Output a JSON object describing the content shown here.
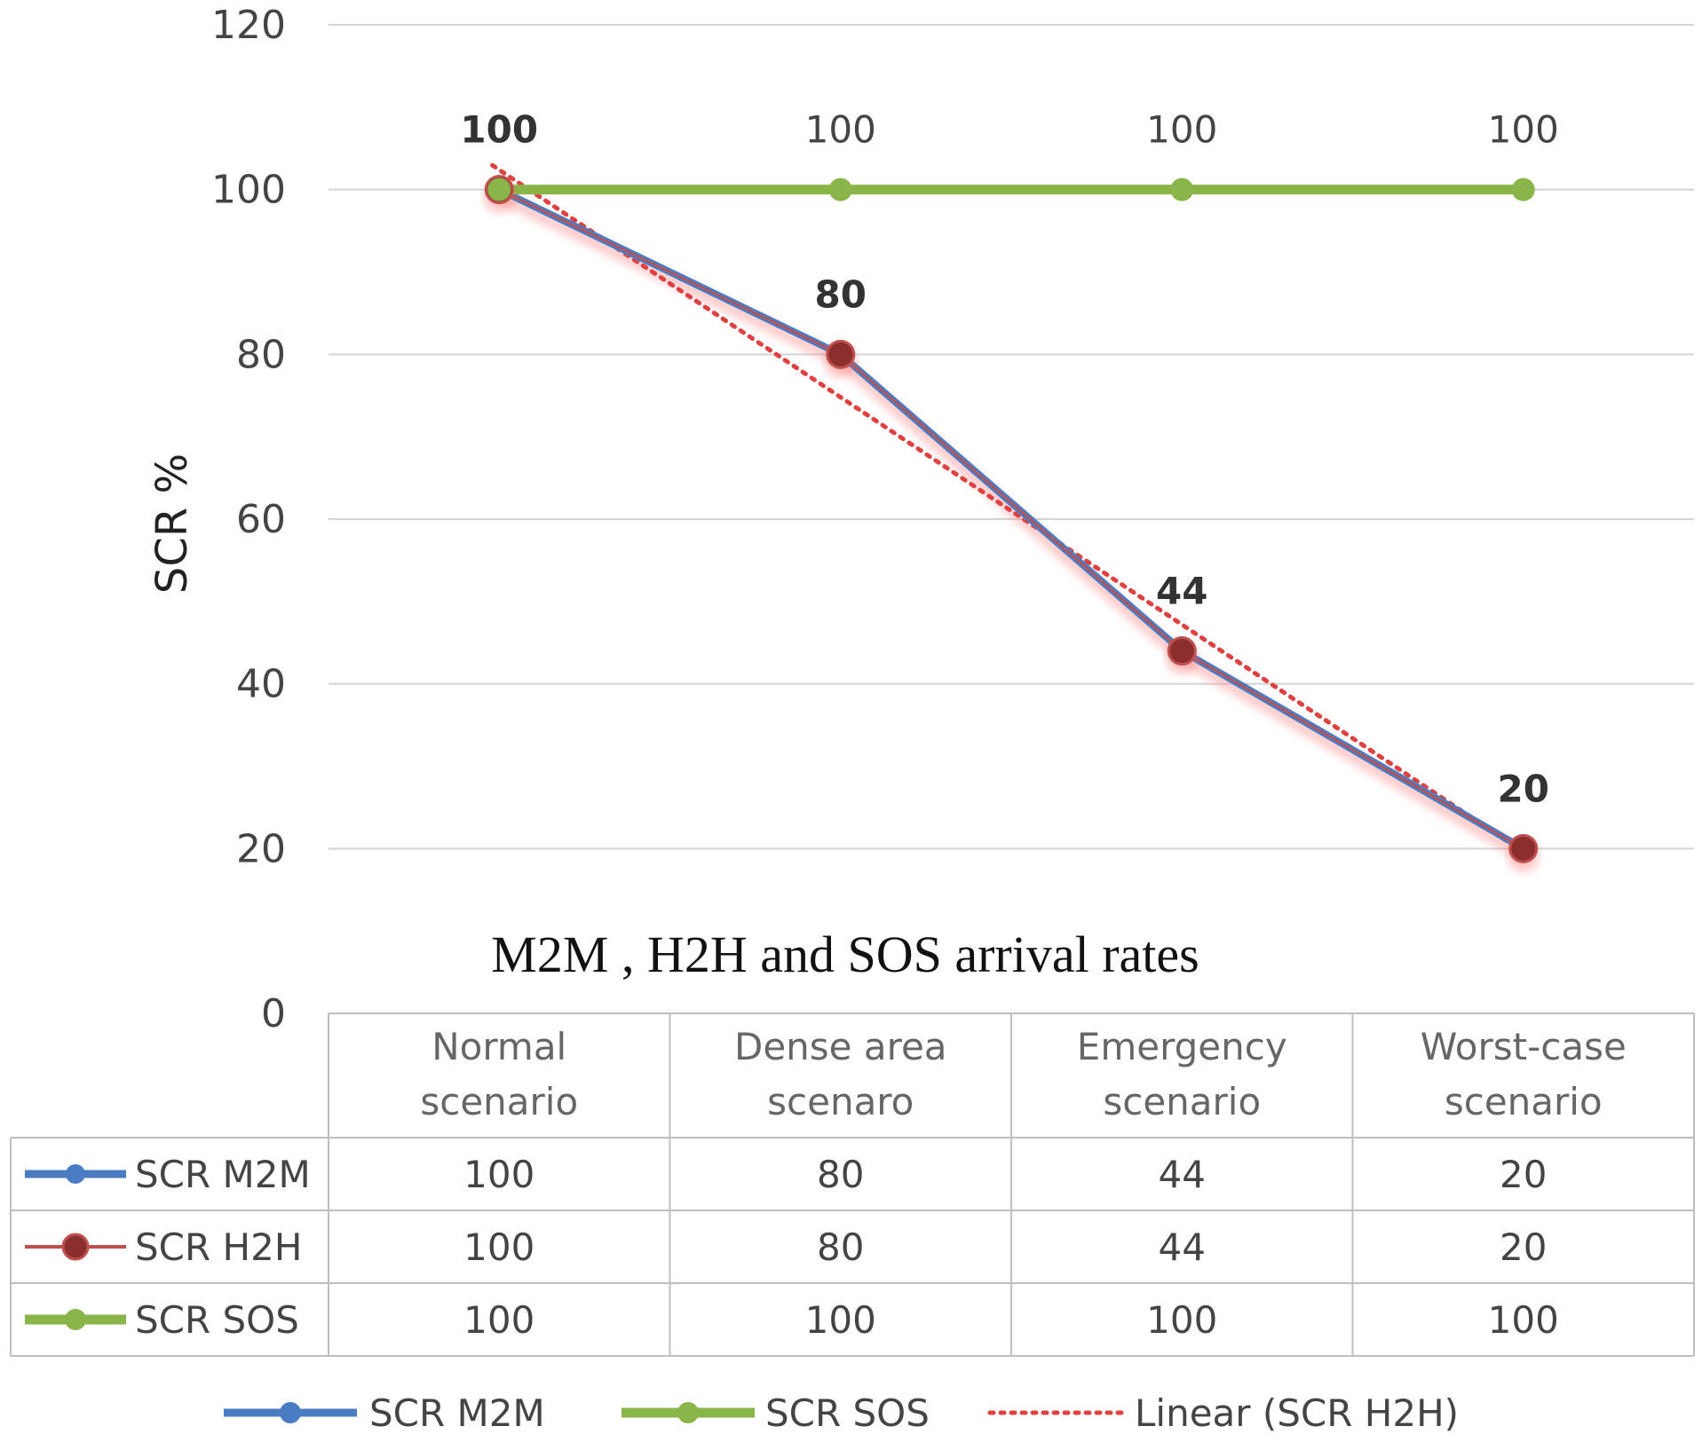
{
  "chart_data": {
    "type": "line",
    "title": "M2M , H2H and SOS arrival rates",
    "xlabel": "",
    "ylabel": "SCR %",
    "ylim": [
      0,
      120
    ],
    "yticks": [
      "0",
      "20",
      "40",
      "60",
      "80",
      "100",
      "120"
    ],
    "categories": [
      [
        "Normal",
        "scenario"
      ],
      [
        "Dense area",
        "scenaro"
      ],
      [
        "Emergency",
        "scenario"
      ],
      [
        "Worst-case",
        "scenario"
      ]
    ],
    "series": [
      {
        "name": "SCR M2M",
        "values": [
          100,
          80,
          44,
          20
        ],
        "color": "#4a7cc4",
        "marker": "circle"
      },
      {
        "name": "SCR H2H",
        "values": [
          100,
          80,
          44,
          20
        ],
        "color": "#c0504d",
        "marker": "dark-red-circle"
      },
      {
        "name": "SCR SOS",
        "values": [
          100,
          100,
          100,
          100
        ],
        "color": "#8ab548",
        "marker": "circle"
      }
    ],
    "trendline": {
      "name": "Linear (SCR H2H)",
      "type": "linear",
      "of": "SCR H2H",
      "color": "#e04040"
    },
    "data_labels": {
      "h2h": [
        "100",
        "80",
        "44",
        "20"
      ],
      "sos": [
        "100",
        "100",
        "100",
        "100"
      ]
    },
    "table": {
      "rows": [
        {
          "name": "SCR M2M",
          "values": [
            "100",
            "80",
            "44",
            "20"
          ]
        },
        {
          "name": "SCR H2H",
          "values": [
            "100",
            "80",
            "44",
            "20"
          ]
        },
        {
          "name": "SCR SOS",
          "values": [
            "100",
            "100",
            "100",
            "100"
          ]
        }
      ]
    },
    "legend": [
      "SCR M2M",
      "SCR SOS",
      "Linear (SCR H2H)"
    ],
    "legend_position": "bottom",
    "grid": true
  }
}
